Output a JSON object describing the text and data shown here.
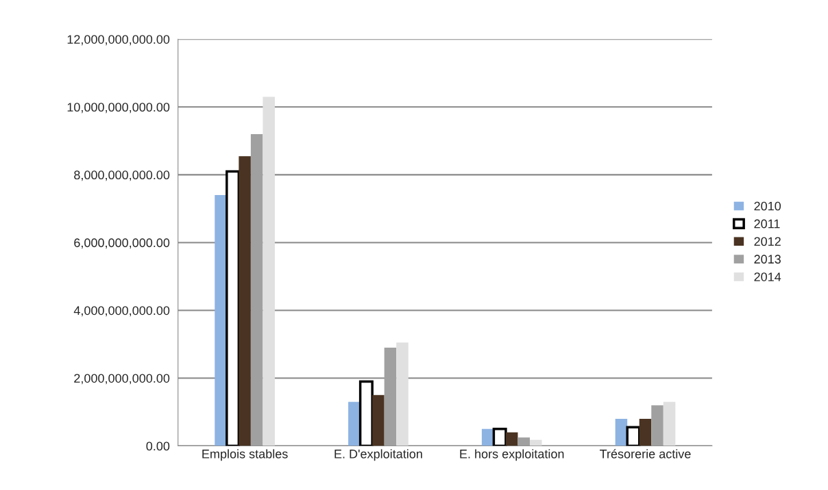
{
  "chart_data": {
    "type": "bar",
    "categories": [
      "Emplois stables",
      "E. D'exploitation",
      "E. hors exploitation",
      "Trésorerie active"
    ],
    "series": [
      {
        "name": "2010",
        "color": "#8db3e2",
        "values": [
          7400000000,
          1300000000,
          500000000,
          800000000
        ]
      },
      {
        "name": "2011",
        "color": "#ffffff",
        "values": [
          8100000000,
          1900000000,
          500000000,
          550000000
        ]
      },
      {
        "name": "2012",
        "color": "#4a3322",
        "values": [
          8550000000,
          1500000000,
          400000000,
          800000000
        ]
      },
      {
        "name": "2013",
        "color": "#a0a0a0",
        "values": [
          9200000000,
          2900000000,
          250000000,
          1200000000
        ]
      },
      {
        "name": "2014",
        "color": "#e0e0e0",
        "values": [
          10300000000,
          3050000000,
          180000000,
          1300000000
        ]
      }
    ],
    "ylim": [
      0,
      12000000000
    ],
    "yticks": [
      {
        "value": 0,
        "label": "0.00"
      },
      {
        "value": 2000000000,
        "label": "2,000,000,000.00"
      },
      {
        "value": 4000000000,
        "label": "4,000,000,000.00"
      },
      {
        "value": 6000000000,
        "label": "6,000,000,000.00"
      },
      {
        "value": 8000000000,
        "label": "8,000,000,000.00"
      },
      {
        "value": 10000000000,
        "label": "10,000,000,000.00"
      },
      {
        "value": 12000000000,
        "label": "12,000,000,000.00"
      }
    ],
    "grid": "y",
    "legend": "right"
  }
}
